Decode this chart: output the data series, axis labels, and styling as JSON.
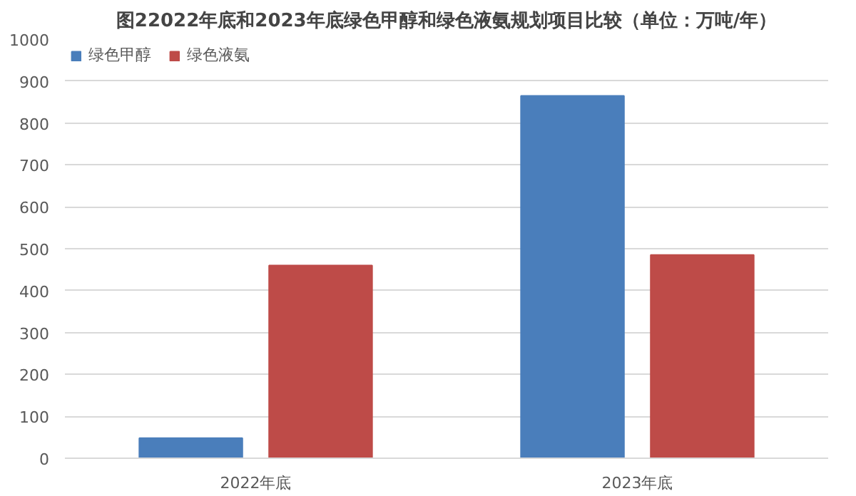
{
  "chart_data": {
    "type": "bar",
    "title": "图22022年底和2023年底绿色甲醇和绿色液氨规划项目比较（单位：万吨/年）",
    "categories": [
      "2022年底",
      "2023年底"
    ],
    "series": [
      {
        "name": "绿色甲醇",
        "color": "#4a7ebb",
        "values": [
          48,
          865
        ]
      },
      {
        "name": "绿色液氨",
        "color": "#be4b48",
        "values": [
          460,
          485
        ]
      }
    ],
    "ylim": [
      0,
      1000
    ],
    "yticks": [
      0,
      100,
      200,
      300,
      400,
      500,
      600,
      700,
      800,
      900,
      1000
    ],
    "grid": "y",
    "legend": "top left"
  }
}
